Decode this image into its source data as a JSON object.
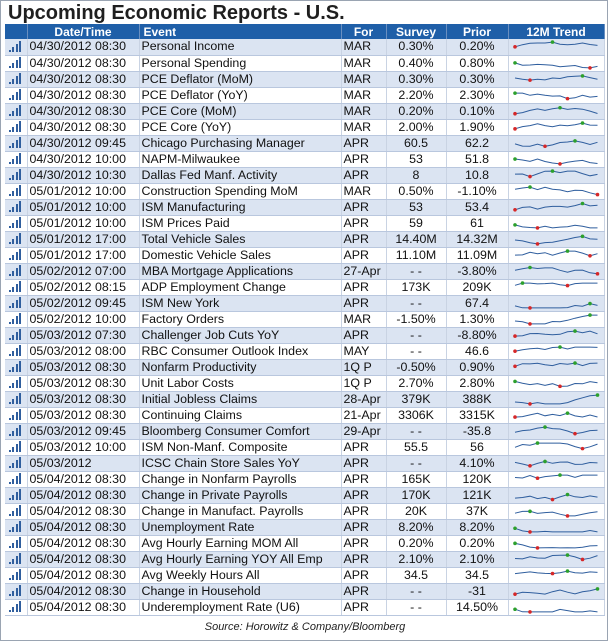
{
  "title": "Upcoming Economic Reports - U.S.",
  "columns": {
    "datetime": "Date/Time",
    "event": "Event",
    "for": "For",
    "survey": "Survey",
    "prior": "Prior",
    "trend": "12M Trend"
  },
  "rows": [
    {
      "datetime": "04/30/2012 08:30",
      "event": "Personal Income",
      "for": "MAR",
      "survey": "0.30%",
      "prior": "0.20%"
    },
    {
      "datetime": "04/30/2012 08:30",
      "event": "Personal Spending",
      "for": "MAR",
      "survey": "0.40%",
      "prior": "0.80%"
    },
    {
      "datetime": "04/30/2012 08:30",
      "event": "PCE Deflator (MoM)",
      "for": "MAR",
      "survey": "0.30%",
      "prior": "0.30%"
    },
    {
      "datetime": "04/30/2012 08:30",
      "event": "PCE Deflator (YoY)",
      "for": "MAR",
      "survey": "2.20%",
      "prior": "2.30%"
    },
    {
      "datetime": "04/30/2012 08:30",
      "event": "PCE Core (MoM)",
      "for": "MAR",
      "survey": "0.20%",
      "prior": "0.10%"
    },
    {
      "datetime": "04/30/2012 08:30",
      "event": "PCE Core (YoY)",
      "for": "MAR",
      "survey": "2.00%",
      "prior": "1.90%"
    },
    {
      "datetime": "04/30/2012 09:45",
      "event": "Chicago Purchasing Manager",
      "for": "APR",
      "survey": "60.5",
      "prior": "62.2"
    },
    {
      "datetime": "04/30/2012 10:00",
      "event": "NAPM-Milwaukee",
      "for": "APR",
      "survey": "53",
      "prior": "51.8"
    },
    {
      "datetime": "04/30/2012 10:30",
      "event": "Dallas Fed Manf. Activity",
      "for": "APR",
      "survey": "8",
      "prior": "10.8"
    },
    {
      "datetime": "05/01/2012 10:00",
      "event": "Construction Spending MoM",
      "for": "MAR",
      "survey": "0.50%",
      "prior": "-1.10%"
    },
    {
      "datetime": "05/01/2012 10:00",
      "event": "ISM Manufacturing",
      "for": "APR",
      "survey": "53",
      "prior": "53.4"
    },
    {
      "datetime": "05/01/2012 10:00",
      "event": "ISM Prices Paid",
      "for": "APR",
      "survey": "59",
      "prior": "61"
    },
    {
      "datetime": "05/01/2012 17:00",
      "event": "Total Vehicle Sales",
      "for": "APR",
      "survey": "14.40M",
      "prior": "14.32M"
    },
    {
      "datetime": "05/01/2012 17:00",
      "event": "Domestic Vehicle Sales",
      "for": "APR",
      "survey": "11.10M",
      "prior": "11.09M"
    },
    {
      "datetime": "05/02/2012 07:00",
      "event": "MBA Mortgage Applications",
      "for": "27-Apr",
      "survey": "- -",
      "prior": "-3.80%"
    },
    {
      "datetime": "05/02/2012 08:15",
      "event": "ADP Employment Change",
      "for": "APR",
      "survey": "173K",
      "prior": "209K"
    },
    {
      "datetime": "05/02/2012 09:45",
      "event": "ISM New York",
      "for": "APR",
      "survey": "- -",
      "prior": "67.4"
    },
    {
      "datetime": "05/02/2012 10:00",
      "event": "Factory Orders",
      "for": "MAR",
      "survey": "-1.50%",
      "prior": "1.30%"
    },
    {
      "datetime": "05/03/2012 07:30",
      "event": "Challenger Job Cuts YoY",
      "for": "APR",
      "survey": "- -",
      "prior": "-8.80%"
    },
    {
      "datetime": "05/03/2012 08:00",
      "event": "RBC Consumer Outlook Index",
      "for": "MAY",
      "survey": "- -",
      "prior": "46.6"
    },
    {
      "datetime": "05/03/2012 08:30",
      "event": "Nonfarm Productivity",
      "for": "1Q P",
      "survey": "-0.50%",
      "prior": "0.90%"
    },
    {
      "datetime": "05/03/2012 08:30",
      "event": "Unit Labor Costs",
      "for": "1Q P",
      "survey": "2.70%",
      "prior": "2.80%"
    },
    {
      "datetime": "05/03/2012 08:30",
      "event": "Initial Jobless Claims",
      "for": "28-Apr",
      "survey": "379K",
      "prior": "388K"
    },
    {
      "datetime": "05/03/2012 08:30",
      "event": "Continuing Claims",
      "for": "21-Apr",
      "survey": "3306K",
      "prior": "3315K"
    },
    {
      "datetime": "05/03/2012 09:45",
      "event": "Bloomberg Consumer Comfort",
      "for": "29-Apr",
      "survey": "- -",
      "prior": "-35.8"
    },
    {
      "datetime": "05/03/2012 10:00",
      "event": "ISM Non-Manf. Composite",
      "for": "APR",
      "survey": "55.5",
      "prior": "56"
    },
    {
      "datetime": "05/03/2012",
      "event": "ICSC Chain Store Sales YoY",
      "for": "APR",
      "survey": "- -",
      "prior": "4.10%"
    },
    {
      "datetime": "05/04/2012 08:30",
      "event": "Change in Nonfarm Payrolls",
      "for": "APR",
      "survey": "165K",
      "prior": "120K"
    },
    {
      "datetime": "05/04/2012 08:30",
      "event": "Change in Private Payrolls",
      "for": "APR",
      "survey": "170K",
      "prior": "121K"
    },
    {
      "datetime": "05/04/2012 08:30",
      "event": "Change in Manufact. Payrolls",
      "for": "APR",
      "survey": "20K",
      "prior": "37K"
    },
    {
      "datetime": "05/04/2012 08:30",
      "event": "Unemployment Rate",
      "for": "APR",
      "survey": "8.20%",
      "prior": "8.20%"
    },
    {
      "datetime": "05/04/2012 08:30",
      "event": "Avg Hourly Earning MOM All",
      "for": "APR",
      "survey": "0.20%",
      "prior": "0.20%"
    },
    {
      "datetime": "05/04/2012 08:30",
      "event": "Avg Hourly Earning YOY All Emp",
      "for": "APR",
      "survey": "2.10%",
      "prior": "2.10%"
    },
    {
      "datetime": "05/04/2012 08:30",
      "event": "Avg Weekly Hours All",
      "for": "APR",
      "survey": "34.5",
      "prior": "34.5"
    },
    {
      "datetime": "05/04/2012 08:30",
      "event": "Change in Household",
      "for": "APR",
      "survey": "- -",
      "prior": "-31"
    },
    {
      "datetime": "05/04/2012 08:30",
      "event": "Underemployment Rate (U6)",
      "for": "APR",
      "survey": "- -",
      "prior": "14.50%"
    }
  ],
  "source": "Source: Horowitz & Company/Bloomberg",
  "colors": {
    "header_bg": "#1f5fa8",
    "row_alt": "#dbe4f2",
    "spark_line": "#2f5e9e",
    "spark_high": "#2ca02c",
    "spark_low": "#d62728"
  }
}
